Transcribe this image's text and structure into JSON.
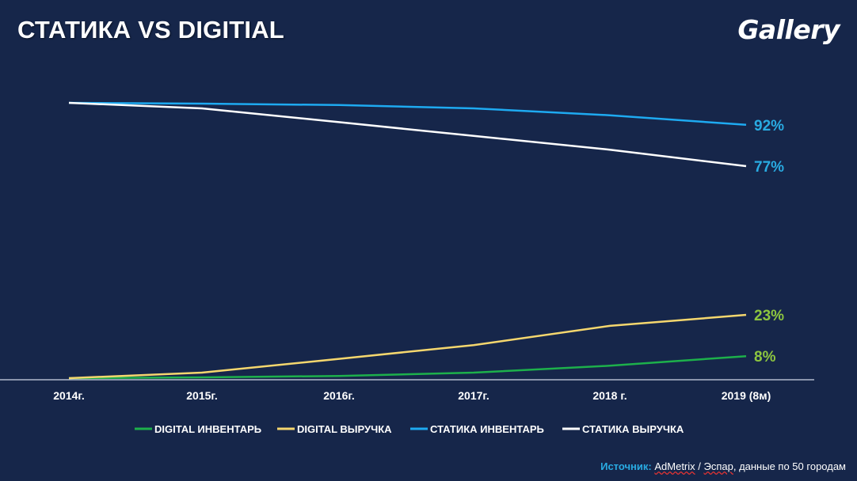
{
  "header": {
    "title": "СТАТИКА VS DIGITIAL",
    "logo": "Gallery"
  },
  "source": {
    "label": "Источник:",
    "name1": "AdMetrix",
    "sep": " / ",
    "name2": "Эспар",
    "rest": ", данные по 50 городам"
  },
  "colors": {
    "background": "#16264a",
    "digital_inventory": "#1db04b",
    "digital_revenue": "#f5d76e",
    "static_inventory": "#1eaaf1",
    "static_revenue": "#ffffff",
    "label_blue": "#29abe2",
    "label_green": "#8dc63f"
  },
  "chart_data": {
    "type": "line",
    "categories": [
      "2014г.",
      "2015г.",
      "2016г.",
      "2017г.",
      "2018 г.",
      "2019 (8м)"
    ],
    "ylim": [
      0,
      100
    ],
    "grid": false,
    "legend_position": "bottom",
    "series": [
      {
        "name": "DIGITAL ИНВЕНТАРЬ",
        "color": "#1db04b",
        "values": [
          0,
          0.3,
          0.8,
          2,
          4.5,
          8
        ],
        "end_label": "8%",
        "end_label_color": "#8dc63f"
      },
      {
        "name": "DIGITAL ВЫРУЧКА",
        "color": "#f5d76e",
        "values": [
          0,
          2,
          7,
          12,
          19,
          23
        ],
        "end_label": "23%",
        "end_label_color": "#8dc63f"
      },
      {
        "name": "СТАТИКА ИНВЕНТАРЬ",
        "color": "#1eaaf1",
        "values": [
          100,
          99.7,
          99.2,
          98,
          95.5,
          92
        ],
        "end_label": "92%",
        "end_label_color": "#29abe2"
      },
      {
        "name": "СТАТИКА ВЫРУЧКА",
        "color": "#ffffff",
        "values": [
          100,
          98,
          93,
          88,
          83,
          77
        ],
        "end_label": "77%",
        "end_label_color": "#29abe2"
      }
    ]
  }
}
